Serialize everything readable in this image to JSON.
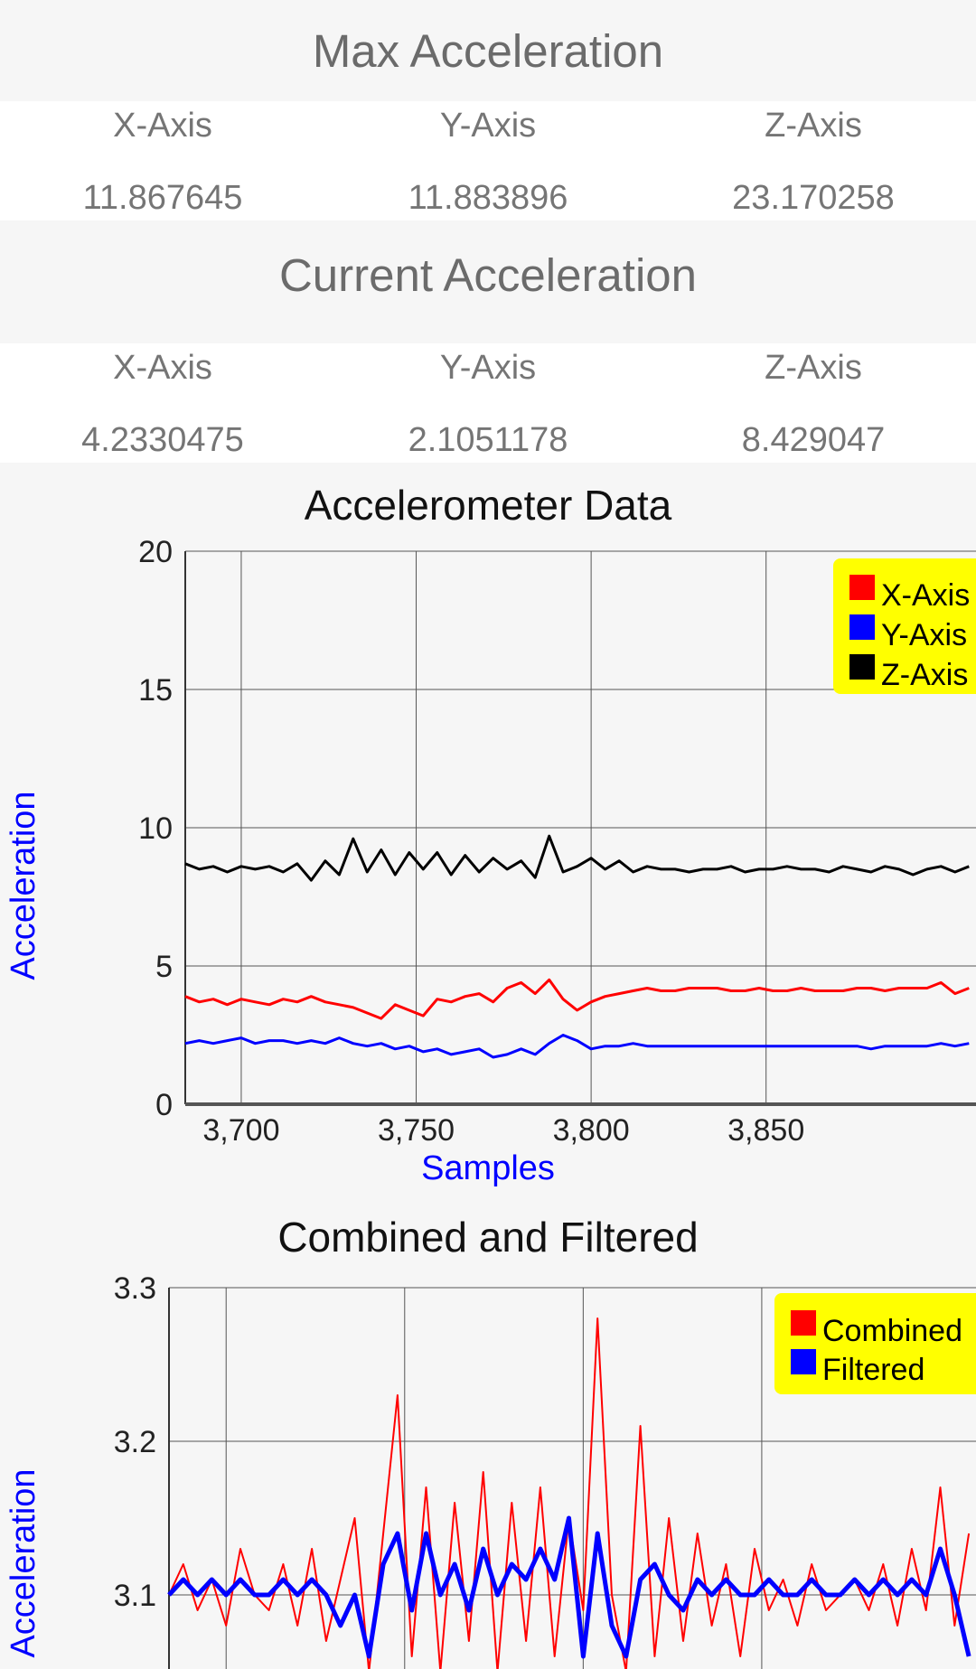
{
  "max_section": {
    "title": "Max Acceleration",
    "x_label": "X-Axis",
    "y_label": "Y-Axis",
    "z_label": "Z-Axis",
    "x_value": "11.867645",
    "y_value": "11.883896",
    "z_value": "23.170258"
  },
  "current_section": {
    "title": "Current Acceleration",
    "x_label": "X-Axis",
    "y_label": "Y-Axis",
    "z_label": "Z-Axis",
    "x_value": "4.2330475",
    "y_value": "2.1051178",
    "z_value": "8.429047"
  },
  "charts": {
    "accel": {
      "title": "Accelerometer Data",
      "xlabel": "Samples",
      "ylabel": "Acceleration",
      "legend": [
        "X-Axis",
        "Y-Axis",
        "Z-Axis"
      ]
    },
    "combined": {
      "title": "Combined and Filtered",
      "ylabel": "Acceleration",
      "legend": [
        "Combined",
        "Filtered"
      ]
    }
  },
  "chart_data": [
    {
      "type": "line",
      "title": "Accelerometer Data",
      "xlabel": "Samples",
      "ylabel": "Acceleration",
      "xlim": [
        3684,
        3910
      ],
      "ylim": [
        0,
        20
      ],
      "xticks": [
        3700,
        3750,
        3800,
        3850
      ],
      "xtick_labels": [
        "3,700",
        "3,750",
        "3,800",
        "3,850"
      ],
      "yticks": [
        0,
        5,
        10,
        15,
        20
      ],
      "grid": true,
      "legend_position": "top-right",
      "series": [
        {
          "name": "X-Axis",
          "color": "#ff0000",
          "x": [
            3684,
            3688,
            3692,
            3696,
            3700,
            3704,
            3708,
            3712,
            3716,
            3720,
            3724,
            3728,
            3732,
            3736,
            3740,
            3744,
            3748,
            3752,
            3756,
            3760,
            3764,
            3768,
            3772,
            3776,
            3780,
            3784,
            3788,
            3792,
            3796,
            3800,
            3804,
            3808,
            3812,
            3816,
            3820,
            3824,
            3828,
            3832,
            3836,
            3840,
            3844,
            3848,
            3852,
            3856,
            3860,
            3864,
            3868,
            3872,
            3876,
            3880,
            3884,
            3888,
            3892,
            3896,
            3900,
            3904,
            3908
          ],
          "y": [
            3.9,
            3.7,
            3.8,
            3.6,
            3.8,
            3.7,
            3.6,
            3.8,
            3.7,
            3.9,
            3.7,
            3.6,
            3.5,
            3.3,
            3.1,
            3.6,
            3.4,
            3.2,
            3.8,
            3.7,
            3.9,
            4.0,
            3.7,
            4.2,
            4.4,
            4.0,
            4.5,
            3.8,
            3.4,
            3.7,
            3.9,
            4.0,
            4.1,
            4.2,
            4.1,
            4.1,
            4.2,
            4.2,
            4.2,
            4.1,
            4.1,
            4.2,
            4.1,
            4.1,
            4.2,
            4.1,
            4.1,
            4.1,
            4.2,
            4.2,
            4.1,
            4.2,
            4.2,
            4.2,
            4.4,
            4.0,
            4.2
          ]
        },
        {
          "name": "Y-Axis",
          "color": "#0000ff",
          "x": [
            3684,
            3688,
            3692,
            3696,
            3700,
            3704,
            3708,
            3712,
            3716,
            3720,
            3724,
            3728,
            3732,
            3736,
            3740,
            3744,
            3748,
            3752,
            3756,
            3760,
            3764,
            3768,
            3772,
            3776,
            3780,
            3784,
            3788,
            3792,
            3796,
            3800,
            3804,
            3808,
            3812,
            3816,
            3820,
            3824,
            3828,
            3832,
            3836,
            3840,
            3844,
            3848,
            3852,
            3856,
            3860,
            3864,
            3868,
            3872,
            3876,
            3880,
            3884,
            3888,
            3892,
            3896,
            3900,
            3904,
            3908
          ],
          "y": [
            2.2,
            2.3,
            2.2,
            2.3,
            2.4,
            2.2,
            2.3,
            2.3,
            2.2,
            2.3,
            2.2,
            2.4,
            2.2,
            2.1,
            2.2,
            2.0,
            2.1,
            1.9,
            2.0,
            1.8,
            1.9,
            2.0,
            1.7,
            1.8,
            2.0,
            1.8,
            2.2,
            2.5,
            2.3,
            2.0,
            2.1,
            2.1,
            2.2,
            2.1,
            2.1,
            2.1,
            2.1,
            2.1,
            2.1,
            2.1,
            2.1,
            2.1,
            2.1,
            2.1,
            2.1,
            2.1,
            2.1,
            2.1,
            2.1,
            2.0,
            2.1,
            2.1,
            2.1,
            2.1,
            2.2,
            2.1,
            2.2
          ]
        },
        {
          "name": "Z-Axis",
          "color": "#000000",
          "x": [
            3684,
            3688,
            3692,
            3696,
            3700,
            3704,
            3708,
            3712,
            3716,
            3720,
            3724,
            3728,
            3732,
            3736,
            3740,
            3744,
            3748,
            3752,
            3756,
            3760,
            3764,
            3768,
            3772,
            3776,
            3780,
            3784,
            3788,
            3792,
            3796,
            3800,
            3804,
            3808,
            3812,
            3816,
            3820,
            3824,
            3828,
            3832,
            3836,
            3840,
            3844,
            3848,
            3852,
            3856,
            3860,
            3864,
            3868,
            3872,
            3876,
            3880,
            3884,
            3888,
            3892,
            3896,
            3900,
            3904,
            3908
          ],
          "y": [
            8.7,
            8.5,
            8.6,
            8.4,
            8.6,
            8.5,
            8.6,
            8.4,
            8.7,
            8.1,
            8.8,
            8.3,
            9.6,
            8.4,
            9.2,
            8.3,
            9.1,
            8.5,
            9.1,
            8.3,
            9.0,
            8.4,
            8.9,
            8.5,
            8.8,
            8.2,
            9.7,
            8.4,
            8.6,
            8.9,
            8.5,
            8.8,
            8.4,
            8.6,
            8.5,
            8.5,
            8.4,
            8.5,
            8.5,
            8.6,
            8.4,
            8.5,
            8.5,
            8.6,
            8.5,
            8.5,
            8.4,
            8.6,
            8.5,
            8.4,
            8.6,
            8.5,
            8.3,
            8.5,
            8.6,
            8.4,
            8.6
          ]
        }
      ]
    },
    {
      "type": "line",
      "title": "Combined and Filtered",
      "ylabel": "Acceleration",
      "xlim": [
        3684,
        3910
      ],
      "ylim": [
        3.05,
        3.3
      ],
      "yticks": [
        3.1,
        3.2,
        3.3
      ],
      "grid": true,
      "legend_position": "top-right",
      "series": [
        {
          "name": "Combined",
          "color": "#ff0000",
          "x": [
            3684,
            3688,
            3692,
            3696,
            3700,
            3704,
            3708,
            3712,
            3716,
            3720,
            3724,
            3728,
            3732,
            3736,
            3740,
            3744,
            3748,
            3752,
            3756,
            3760,
            3764,
            3768,
            3772,
            3776,
            3780,
            3784,
            3788,
            3792,
            3796,
            3800,
            3804,
            3808,
            3812,
            3816,
            3820,
            3824,
            3828,
            3832,
            3836,
            3840,
            3844,
            3848,
            3852,
            3856,
            3860,
            3864,
            3868,
            3872,
            3876,
            3880,
            3884,
            3888,
            3892,
            3896,
            3900,
            3904,
            3908
          ],
          "y": [
            3.1,
            3.12,
            3.09,
            3.11,
            3.08,
            3.13,
            3.1,
            3.09,
            3.12,
            3.08,
            3.13,
            3.07,
            3.11,
            3.15,
            3.05,
            3.14,
            3.23,
            3.06,
            3.17,
            3.05,
            3.16,
            3.07,
            3.18,
            3.05,
            3.16,
            3.07,
            3.17,
            3.06,
            3.15,
            3.09,
            3.28,
            3.1,
            3.05,
            3.21,
            3.06,
            3.15,
            3.07,
            3.14,
            3.08,
            3.12,
            3.06,
            3.13,
            3.09,
            3.11,
            3.08,
            3.12,
            3.09,
            3.1,
            3.11,
            3.09,
            3.12,
            3.08,
            3.13,
            3.09,
            3.17,
            3.08,
            3.14
          ]
        },
        {
          "name": "Filtered",
          "color": "#0000ff",
          "x": [
            3684,
            3688,
            3692,
            3696,
            3700,
            3704,
            3708,
            3712,
            3716,
            3720,
            3724,
            3728,
            3732,
            3736,
            3740,
            3744,
            3748,
            3752,
            3756,
            3760,
            3764,
            3768,
            3772,
            3776,
            3780,
            3784,
            3788,
            3792,
            3796,
            3800,
            3804,
            3808,
            3812,
            3816,
            3820,
            3824,
            3828,
            3832,
            3836,
            3840,
            3844,
            3848,
            3852,
            3856,
            3860,
            3864,
            3868,
            3872,
            3876,
            3880,
            3884,
            3888,
            3892,
            3896,
            3900,
            3904,
            3908
          ],
          "y": [
            3.1,
            3.11,
            3.1,
            3.11,
            3.1,
            3.11,
            3.1,
            3.1,
            3.11,
            3.1,
            3.11,
            3.1,
            3.08,
            3.1,
            3.06,
            3.12,
            3.14,
            3.09,
            3.14,
            3.1,
            3.12,
            3.09,
            3.13,
            3.1,
            3.12,
            3.11,
            3.13,
            3.11,
            3.15,
            3.06,
            3.14,
            3.08,
            3.06,
            3.11,
            3.12,
            3.1,
            3.09,
            3.11,
            3.1,
            3.11,
            3.1,
            3.1,
            3.11,
            3.1,
            3.1,
            3.11,
            3.1,
            3.1,
            3.11,
            3.1,
            3.11,
            3.1,
            3.11,
            3.1,
            3.13,
            3.1,
            3.06
          ]
        }
      ]
    }
  ]
}
